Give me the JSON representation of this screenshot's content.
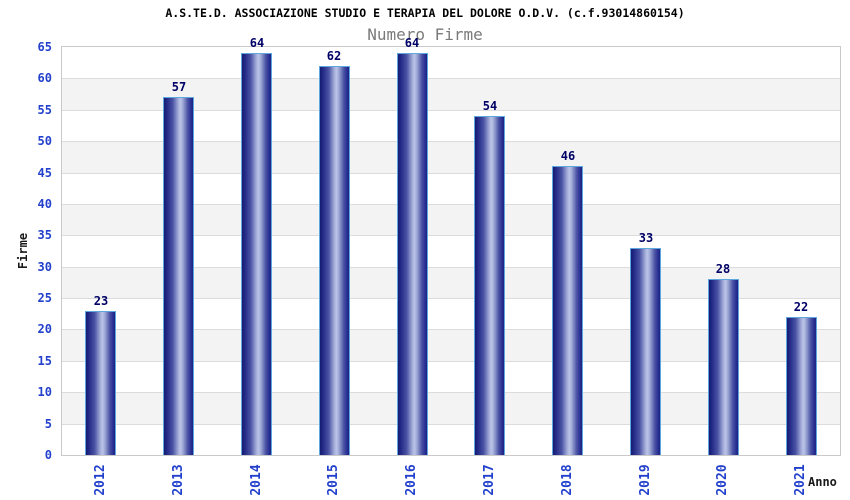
{
  "header": {
    "title": "A.S.TE.D. ASSOCIAZIONE STUDIO E TERAPIA DEL DOLORE O.D.V. (c.f.93014860154)",
    "subtitle": "Numero Firme"
  },
  "chart_data": {
    "type": "bar",
    "title": "Numero Firme",
    "categories": [
      "2012",
      "2013",
      "2014",
      "2015",
      "2016",
      "2017",
      "2018",
      "2019",
      "2020",
      "2021"
    ],
    "values": [
      23,
      57,
      64,
      62,
      64,
      54,
      46,
      33,
      28,
      22
    ],
    "xlabel": "Anno",
    "ylabel": "Firme",
    "ylim": [
      0,
      65
    ],
    "ytick_step": 5,
    "yticks": [
      0,
      5,
      10,
      15,
      20,
      25,
      30,
      35,
      40,
      45,
      50,
      55,
      60,
      65
    ],
    "grid": true,
    "legend": "none",
    "band_alternate": true,
    "colors": {
      "title": "#000000",
      "subtitle": "#7a7a7a",
      "tick_label": "#2240cc",
      "value_label": "#000066",
      "axis_title": "#1a1a1a",
      "plot_border": "#c9c9c9",
      "gridline": "#dcdcdc",
      "band_gray": "#f3f3f3",
      "band_white": "#ffffff",
      "bar_dark_edge": "#171b72",
      "bar_mid": "#4a53a4",
      "bar_highlight": "#bcc4e8",
      "bar_right_edge": "#1d2380",
      "bar_border": "#5ca7de"
    }
  }
}
